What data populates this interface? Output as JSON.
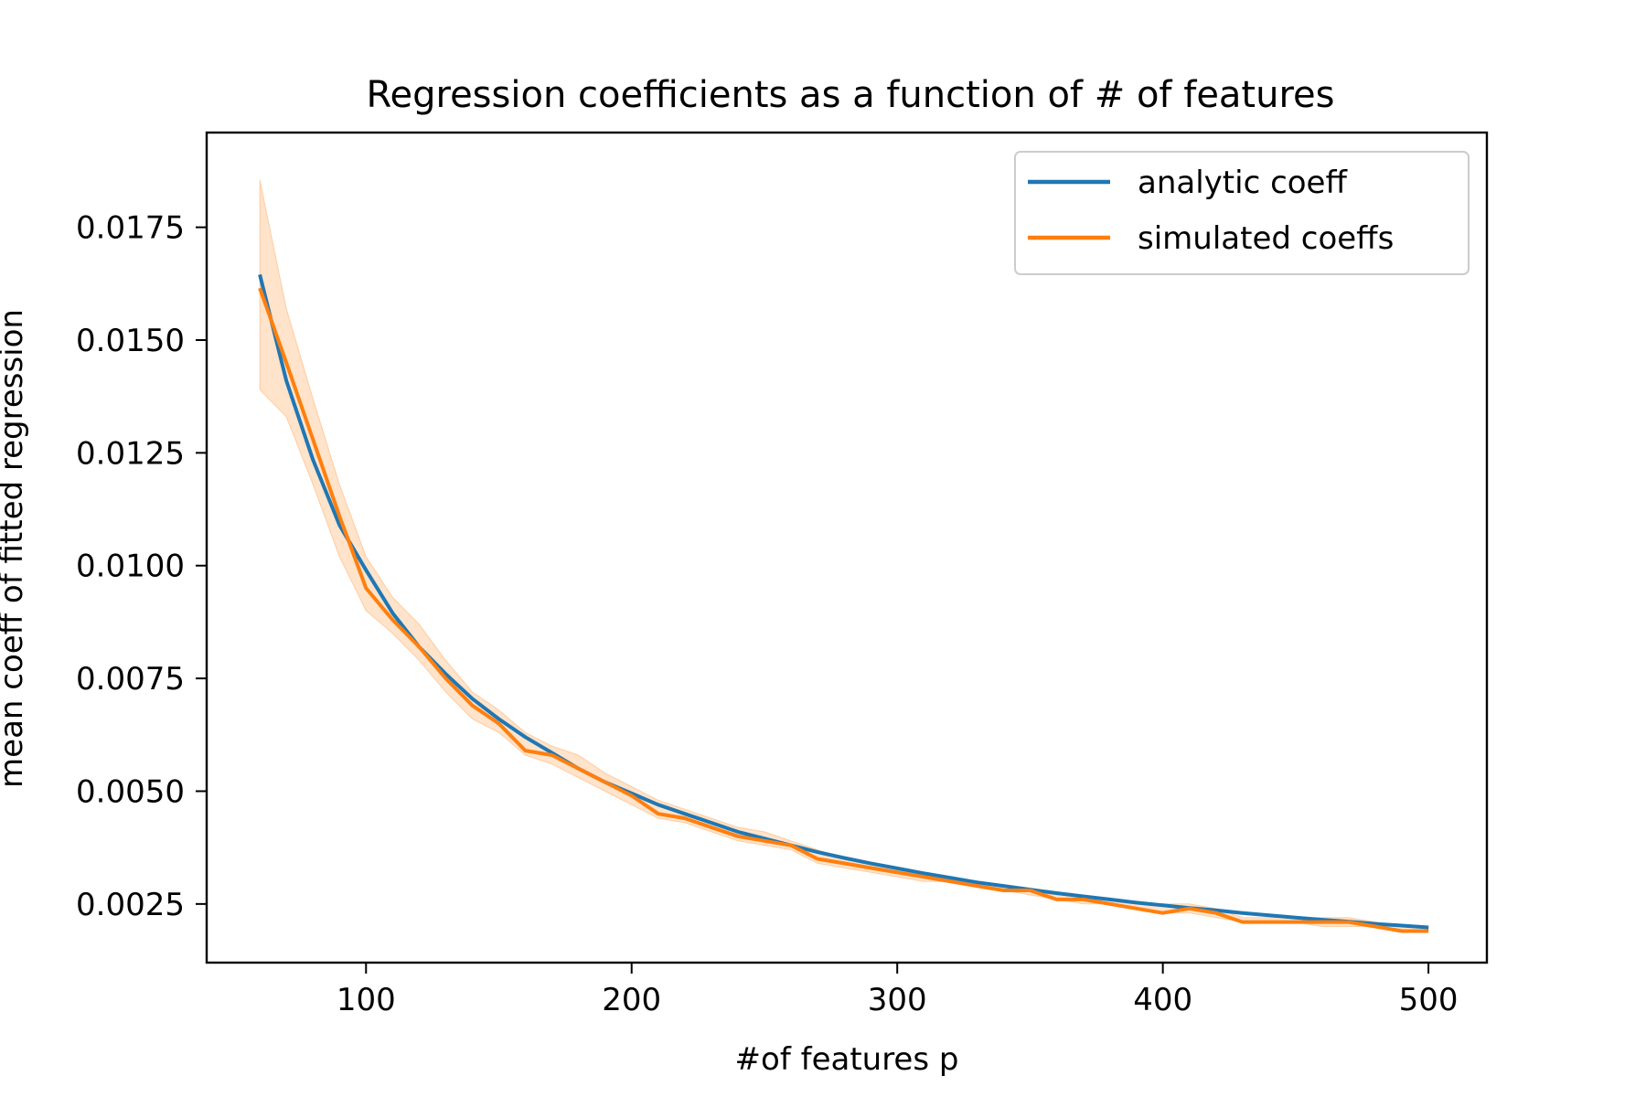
{
  "chart_data": {
    "type": "line",
    "title": "Regression coefficients as a function of # of features",
    "xlabel": "#of features p",
    "ylabel": "mean coeff of fitted regression",
    "xlim": [
      40,
      522
    ],
    "ylim": [
      0.0012,
      0.0196
    ],
    "xticks": [
      100,
      200,
      300,
      400,
      500
    ],
    "xtick_labels": [
      "100",
      "200",
      "300",
      "400",
      "500"
    ],
    "yticks": [
      0.0025,
      0.005,
      0.0075,
      0.01,
      0.0125,
      0.015,
      0.0175
    ],
    "ytick_labels": [
      "0.0025",
      "0.0050",
      "0.0075",
      "0.0100",
      "0.0125",
      "0.0150",
      "0.0175"
    ],
    "grid": false,
    "legend_position": "top-right",
    "x": [
      60,
      70,
      80,
      90,
      100,
      110,
      120,
      130,
      140,
      150,
      160,
      170,
      180,
      190,
      200,
      210,
      220,
      230,
      240,
      250,
      260,
      270,
      280,
      290,
      300,
      310,
      320,
      330,
      340,
      350,
      360,
      370,
      380,
      390,
      400,
      410,
      420,
      430,
      440,
      450,
      460,
      470,
      480,
      490,
      500
    ],
    "series": [
      {
        "name": "analytic coeff",
        "color": "#1f77b4",
        "values": [
          0.01645,
          0.0141,
          0.01235,
          0.0109,
          0.0099,
          0.00895,
          0.0082,
          0.0076,
          0.00705,
          0.0066,
          0.0062,
          0.00585,
          0.0055,
          0.0052,
          0.00495,
          0.0047,
          0.0045,
          0.0043,
          0.0041,
          0.00395,
          0.0038,
          0.00365,
          0.00352,
          0.0034,
          0.00329,
          0.00318,
          0.00308,
          0.00298,
          0.0029,
          0.00282,
          0.00274,
          0.00267,
          0.0026,
          0.00253,
          0.00247,
          0.00241,
          0.00236,
          0.0023,
          0.00225,
          0.0022,
          0.00215,
          0.00211,
          0.00206,
          0.00202,
          0.00198
        ]
      },
      {
        "name": "simulated coeffs",
        "color": "#ff7f0e",
        "values": [
          0.01615,
          0.0145,
          0.0128,
          0.0111,
          0.0095,
          0.0088,
          0.0082,
          0.0075,
          0.0069,
          0.0065,
          0.0059,
          0.0058,
          0.0055,
          0.0052,
          0.0049,
          0.0045,
          0.0044,
          0.0042,
          0.004,
          0.0039,
          0.0038,
          0.0035,
          0.0034,
          0.0033,
          0.0032,
          0.0031,
          0.003,
          0.0029,
          0.0028,
          0.0028,
          0.0026,
          0.0026,
          0.0025,
          0.0024,
          0.0023,
          0.0024,
          0.0023,
          0.0021,
          0.0021,
          0.0021,
          0.0021,
          0.0021,
          0.002,
          0.0019,
          0.0019
        ],
        "band_low": [
          0.0139,
          0.0133,
          0.0118,
          0.0102,
          0.009,
          0.0085,
          0.0079,
          0.0072,
          0.0066,
          0.0063,
          0.0058,
          0.0056,
          0.0053,
          0.005,
          0.0047,
          0.0044,
          0.0043,
          0.0041,
          0.0039,
          0.0038,
          0.0037,
          0.0034,
          0.0033,
          0.0032,
          0.0031,
          0.003,
          0.003,
          0.0029,
          0.0028,
          0.0027,
          0.0026,
          0.0025,
          0.0025,
          0.0024,
          0.0023,
          0.0023,
          0.0022,
          0.0021,
          0.0021,
          0.0021,
          0.002,
          0.002,
          0.002,
          0.0019,
          0.0019
        ],
        "band_high": [
          0.01855,
          0.0157,
          0.0137,
          0.0118,
          0.0102,
          0.0093,
          0.0087,
          0.0079,
          0.0072,
          0.0068,
          0.0063,
          0.006,
          0.0058,
          0.0054,
          0.0051,
          0.0048,
          0.0046,
          0.0044,
          0.0042,
          0.0041,
          0.0039,
          0.0037,
          0.0035,
          0.0034,
          0.0033,
          0.0032,
          0.0031,
          0.003,
          0.0029,
          0.0028,
          0.0027,
          0.0027,
          0.0026,
          0.0025,
          0.0025,
          0.0025,
          0.0024,
          0.0022,
          0.0022,
          0.0022,
          0.0022,
          0.0022,
          0.0021,
          0.002,
          0.002
        ]
      }
    ]
  }
}
